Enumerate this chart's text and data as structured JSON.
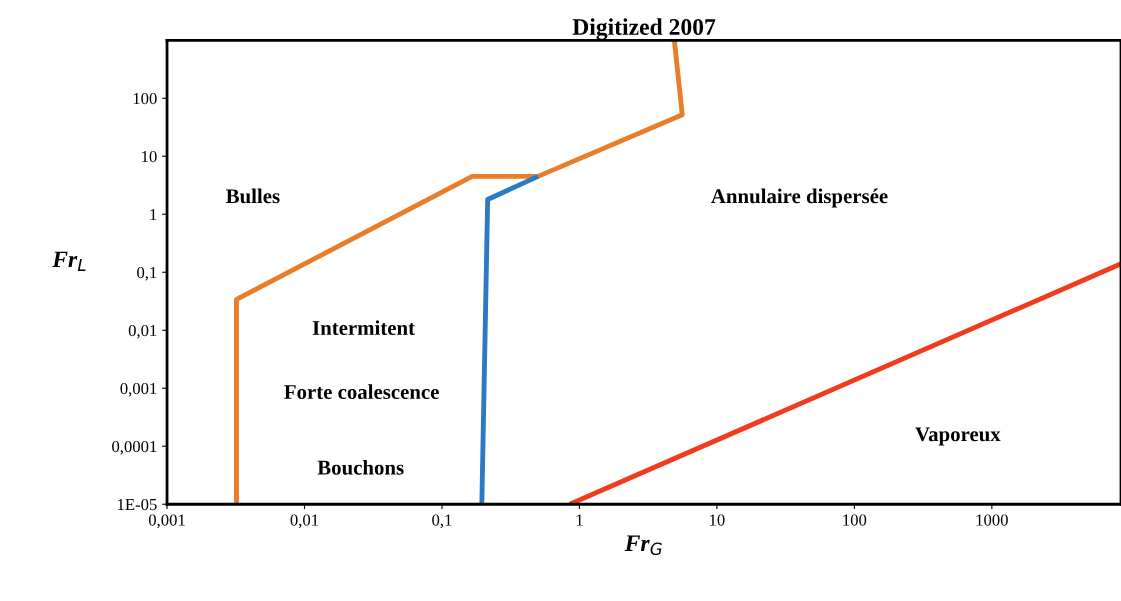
{
  "chart_data": {
    "type": "line",
    "title": "Digitized 2007",
    "xlabel": "Fr$_{G}$",
    "ylabel": "Fr$_{L}$",
    "log": "xy",
    "grid": false,
    "marker": "none",
    "line_style": "solid",
    "xlim": [
      0.001,
      8700
    ],
    "ylim": [
      1e-05,
      1000
    ],
    "xticks": [
      {
        "value": 0.001,
        "label": "0,001"
      },
      {
        "value": 0.01,
        "label": "0,01"
      },
      {
        "value": 0.1,
        "label": "0,1"
      },
      1,
      10,
      100,
      1000
    ],
    "yticks": [
      {
        "value": 1e-05,
        "label": "1E-05"
      },
      {
        "value": 0.0001,
        "label": "0,0001"
      },
      {
        "value": 0.001,
        "label": "0,001"
      },
      {
        "value": 0.01,
        "label": "0,01"
      },
      {
        "value": 0.1,
        "label": "0,1"
      },
      1,
      10,
      100
    ],
    "series": [
      {
        "color": "#e87d2a",
        "x": [
          0.0032,
          0.0032,
          0.166,
          0.5,
          5.6,
          4.9
        ],
        "values": [
          1e-05,
          0.034,
          4.5,
          4.5,
          52,
          1000
        ]
      },
      {
        "color": "#2a7bc4",
        "x": [
          0.195,
          0.215,
          0.5
        ],
        "values": [
          1e-05,
          1.8,
          4.5
        ]
      },
      {
        "color": "#f03c1c",
        "x": [
          0.85,
          8700
        ],
        "values": [
          1e-05,
          0.14
        ]
      }
    ],
    "annotations": [
      "Bulles",
      "Annulaire dispersée",
      "Intermitent",
      "Forte coalescence",
      "Bouchons",
      "Vaporeux"
    ]
  }
}
